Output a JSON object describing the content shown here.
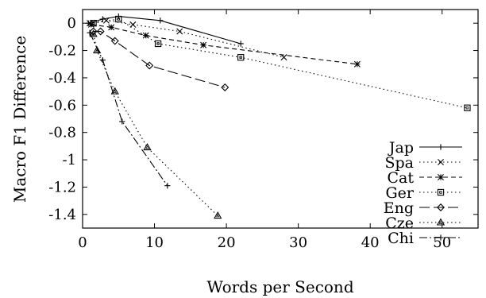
{
  "chart_data": {
    "type": "line",
    "xlabel": "Words per Second",
    "ylabel": "Macro F1 Difference",
    "xlim": [
      0,
      55
    ],
    "ylim": [
      -1.5,
      0.1
    ],
    "xticks": [
      0,
      10,
      20,
      30,
      40,
      50
    ],
    "xtick_labels": [
      "0",
      "10",
      "20",
      "30",
      "40",
      "50"
    ],
    "yticks": [
      0,
      -0.2,
      -0.4,
      -0.6,
      -0.8,
      -1,
      -1.2,
      -1.4
    ],
    "ytick_labels": [
      "0",
      "-0.2",
      "-0.4",
      "-0.6",
      "-0.8",
      "-1",
      "-1.2",
      "-1.4"
    ],
    "grid": false,
    "legend_position": "bottom-right",
    "series": [
      {
        "name": "Jap",
        "marker": "plus",
        "dash": "solid",
        "x": [
          0.8,
          2.8,
          5.0,
          10.8,
          22.0
        ],
        "y": [
          0.0,
          0.03,
          0.05,
          0.02,
          -0.15
        ]
      },
      {
        "name": "Spa",
        "marker": "cross",
        "dash": "dotted",
        "x": [
          1.0,
          3.3,
          7.0,
          13.5,
          28.0
        ],
        "y": [
          0.0,
          0.02,
          -0.01,
          -0.06,
          -0.25
        ]
      },
      {
        "name": "Cat",
        "marker": "star",
        "dash": "dashed",
        "x": [
          1.2,
          4.0,
          8.8,
          16.8,
          38.2
        ],
        "y": [
          -0.01,
          -0.03,
          -0.09,
          -0.16,
          -0.3
        ]
      },
      {
        "name": "Ger",
        "marker": "square",
        "dash": "dotted",
        "x": [
          1.5,
          5.0,
          10.5,
          22.0,
          53.5
        ],
        "y": [
          0.0,
          0.03,
          -0.15,
          -0.25,
          -0.62
        ]
      },
      {
        "name": "Eng",
        "marker": "diamond",
        "dash": "longdash",
        "x": [
          1.5,
          2.5,
          4.5,
          9.3,
          19.8
        ],
        "y": [
          -0.06,
          -0.06,
          -0.13,
          -0.31,
          -0.47
        ]
      },
      {
        "name": "Cze",
        "marker": "triangle",
        "dash": "dotted",
        "x": [
          1.5,
          2.0,
          4.5,
          9.0,
          18.8
        ],
        "y": [
          -0.08,
          -0.2,
          -0.5,
          -0.91,
          -1.41
        ]
      },
      {
        "name": "Chi",
        "marker": "plus",
        "dash": "dashdot",
        "x": [
          1.0,
          2.8,
          5.5,
          11.8
        ],
        "y": [
          -0.07,
          -0.27,
          -0.72,
          -1.19
        ]
      }
    ]
  }
}
